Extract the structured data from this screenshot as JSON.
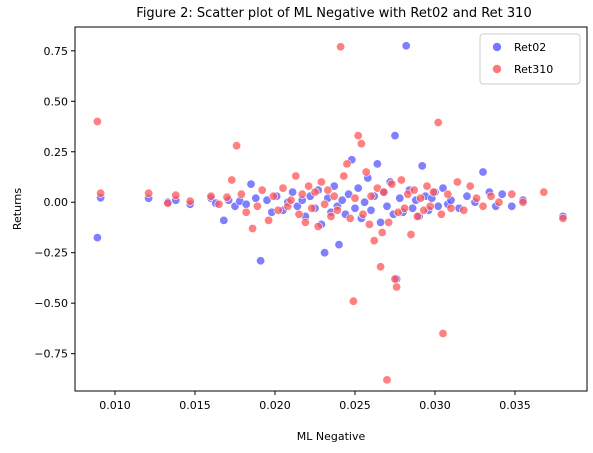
{
  "chart_data": {
    "type": "scatter",
    "title": "Figure 2: Scatter plot of ML Negative with Ret02 and Ret 310",
    "xlabel": "ML Negative",
    "ylabel": "Returns",
    "xlim": [
      0.0075,
      0.0395
    ],
    "ylim": [
      -0.935,
      0.868
    ],
    "xticks": [
      0.01,
      0.015,
      0.02,
      0.025,
      0.03,
      0.035
    ],
    "xtick_labels": [
      "0.010",
      "0.015",
      "0.020",
      "0.025",
      "0.030",
      "0.035"
    ],
    "yticks": [
      -0.75,
      -0.5,
      -0.25,
      0.0,
      0.25,
      0.5,
      0.75
    ],
    "ytick_labels": [
      "−0.75",
      "−0.50",
      "−0.25",
      "0.00",
      "0.25",
      "0.50",
      "0.75"
    ],
    "grid": false,
    "legend_position": "top-right",
    "series": [
      {
        "name": "Ret02",
        "color": "#5555ff",
        "points": [
          [
            0.0089,
            -0.175
          ],
          [
            0.0091,
            0.022
          ],
          [
            0.0121,
            0.02
          ],
          [
            0.0133,
            0.0
          ],
          [
            0.0138,
            0.01
          ],
          [
            0.0147,
            -0.01
          ],
          [
            0.016,
            0.02
          ],
          [
            0.0163,
            -0.005
          ],
          [
            0.0168,
            -0.09
          ],
          [
            0.0171,
            0.01
          ],
          [
            0.0175,
            -0.02
          ],
          [
            0.0178,
            0.005
          ],
          [
            0.0182,
            -0.01
          ],
          [
            0.0185,
            0.09
          ],
          [
            0.0188,
            0.02
          ],
          [
            0.0191,
            -0.29
          ],
          [
            0.0195,
            0.01
          ],
          [
            0.0198,
            -0.05
          ],
          [
            0.0201,
            0.03
          ],
          [
            0.0205,
            -0.04
          ],
          [
            0.0208,
            0.0
          ],
          [
            0.0211,
            0.05
          ],
          [
            0.0214,
            -0.02
          ],
          [
            0.0217,
            0.01
          ],
          [
            0.0219,
            -0.07
          ],
          [
            0.0222,
            0.03
          ],
          [
            0.0225,
            -0.03
          ],
          [
            0.0227,
            0.06
          ],
          [
            0.0229,
            -0.11
          ],
          [
            0.0231,
            -0.25
          ],
          [
            0.0233,
            0.02
          ],
          [
            0.0235,
            -0.05
          ],
          [
            0.0237,
            0.08
          ],
          [
            0.0239,
            -0.02
          ],
          [
            0.024,
            -0.21
          ],
          [
            0.0242,
            0.01
          ],
          [
            0.0244,
            -0.06
          ],
          [
            0.0246,
            0.04
          ],
          [
            0.0248,
            0.21
          ],
          [
            0.025,
            -0.03
          ],
          [
            0.0252,
            0.07
          ],
          [
            0.0254,
            -0.08
          ],
          [
            0.0256,
            0.0
          ],
          [
            0.0258,
            0.12
          ],
          [
            0.026,
            -0.04
          ],
          [
            0.0262,
            0.03
          ],
          [
            0.0264,
            0.19
          ],
          [
            0.0266,
            -0.1
          ],
          [
            0.0268,
            0.05
          ],
          [
            0.027,
            -0.02
          ],
          [
            0.0272,
            0.1
          ],
          [
            0.0274,
            -0.06
          ],
          [
            0.0275,
            0.33
          ],
          [
            0.0276,
            -0.38
          ],
          [
            0.0278,
            0.02
          ],
          [
            0.028,
            -0.05
          ],
          [
            0.0282,
            0.775
          ],
          [
            0.0284,
            0.06
          ],
          [
            0.0286,
            -0.03
          ],
          [
            0.0288,
            0.01
          ],
          [
            0.029,
            -0.07
          ],
          [
            0.0292,
            0.18
          ],
          [
            0.0294,
            0.03
          ],
          [
            0.0296,
            -0.04
          ],
          [
            0.0298,
            0.02
          ],
          [
            0.03,
            0.05
          ],
          [
            0.0302,
            -0.02
          ],
          [
            0.0305,
            0.07
          ],
          [
            0.0308,
            -0.01
          ],
          [
            0.031,
            0.01
          ],
          [
            0.0315,
            -0.03
          ],
          [
            0.032,
            0.03
          ],
          [
            0.0325,
            0.0
          ],
          [
            0.033,
            0.15
          ],
          [
            0.0334,
            0.05
          ],
          [
            0.0338,
            -0.02
          ],
          [
            0.0342,
            0.04
          ],
          [
            0.0348,
            -0.02
          ],
          [
            0.0355,
            0.01
          ],
          [
            0.038,
            -0.07
          ]
        ]
      },
      {
        "name": "Ret310",
        "color": "#ff5555",
        "points": [
          [
            0.0089,
            0.4
          ],
          [
            0.0091,
            0.045
          ],
          [
            0.0121,
            0.045
          ],
          [
            0.0133,
            -0.005
          ],
          [
            0.0138,
            0.035
          ],
          [
            0.0147,
            0.005
          ],
          [
            0.016,
            0.03
          ],
          [
            0.0165,
            -0.01
          ],
          [
            0.017,
            0.025
          ],
          [
            0.0173,
            0.11
          ],
          [
            0.0176,
            0.28
          ],
          [
            0.0179,
            0.04
          ],
          [
            0.0182,
            -0.05
          ],
          [
            0.0186,
            -0.13
          ],
          [
            0.0189,
            -0.02
          ],
          [
            0.0192,
            0.06
          ],
          [
            0.0196,
            -0.09
          ],
          [
            0.0199,
            0.03
          ],
          [
            0.0202,
            -0.04
          ],
          [
            0.0205,
            0.07
          ],
          [
            0.0208,
            -0.02
          ],
          [
            0.021,
            0.01
          ],
          [
            0.0213,
            0.13
          ],
          [
            0.0215,
            -0.06
          ],
          [
            0.0217,
            0.04
          ],
          [
            0.0219,
            -0.1
          ],
          [
            0.0221,
            0.08
          ],
          [
            0.0223,
            -0.03
          ],
          [
            0.0225,
            0.05
          ],
          [
            0.0227,
            -0.12
          ],
          [
            0.0229,
            0.1
          ],
          [
            0.0231,
            -0.01
          ],
          [
            0.0233,
            0.06
          ],
          [
            0.0235,
            -0.07
          ],
          [
            0.0237,
            0.03
          ],
          [
            0.0239,
            -0.04
          ],
          [
            0.0241,
            0.77
          ],
          [
            0.0243,
            0.13
          ],
          [
            0.0245,
            0.19
          ],
          [
            0.0247,
            -0.08
          ],
          [
            0.0249,
            -0.49
          ],
          [
            0.025,
            0.02
          ],
          [
            0.0252,
            0.33
          ],
          [
            0.0254,
            0.29
          ],
          [
            0.0255,
            -0.06
          ],
          [
            0.0257,
            0.15
          ],
          [
            0.0259,
            -0.11
          ],
          [
            0.026,
            0.03
          ],
          [
            0.0262,
            -0.19
          ],
          [
            0.0264,
            0.07
          ],
          [
            0.0266,
            -0.32
          ],
          [
            0.0267,
            -0.15
          ],
          [
            0.0268,
            0.05
          ],
          [
            0.027,
            -0.88
          ],
          [
            0.0271,
            -0.1
          ],
          [
            0.0273,
            0.09
          ],
          [
            0.0275,
            -0.38
          ],
          [
            0.0276,
            -0.42
          ],
          [
            0.0277,
            -0.05
          ],
          [
            0.0279,
            0.11
          ],
          [
            0.0281,
            -0.03
          ],
          [
            0.0283,
            0.04
          ],
          [
            0.0285,
            -0.16
          ],
          [
            0.0287,
            0.06
          ],
          [
            0.0289,
            -0.07
          ],
          [
            0.0291,
            0.02
          ],
          [
            0.0293,
            -0.04
          ],
          [
            0.0295,
            0.08
          ],
          [
            0.0297,
            -0.02
          ],
          [
            0.0299,
            0.05
          ],
          [
            0.0302,
            0.395
          ],
          [
            0.0304,
            -0.06
          ],
          [
            0.0305,
            -0.65
          ],
          [
            0.0308,
            0.04
          ],
          [
            0.031,
            -0.03
          ],
          [
            0.0314,
            0.1
          ],
          [
            0.0318,
            -0.04
          ],
          [
            0.0322,
            0.08
          ],
          [
            0.0326,
            0.02
          ],
          [
            0.033,
            -0.02
          ],
          [
            0.0335,
            0.03
          ],
          [
            0.034,
            0.0
          ],
          [
            0.0348,
            0.04
          ],
          [
            0.0355,
            0.0
          ],
          [
            0.0368,
            0.05
          ],
          [
            0.038,
            -0.08
          ]
        ]
      }
    ]
  }
}
